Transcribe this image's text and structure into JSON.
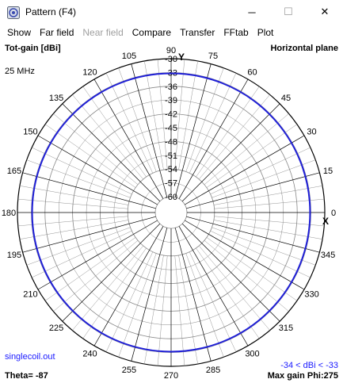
{
  "window": {
    "title": "Pattern   (F4)",
    "minimize_glyph": "─",
    "maximize_glyph": "☐",
    "close_glyph": "✕"
  },
  "menu": [
    {
      "label": "Show",
      "enabled": true
    },
    {
      "label": "Far field",
      "enabled": true
    },
    {
      "label": "Near field",
      "enabled": false
    },
    {
      "label": "Compare",
      "enabled": true
    },
    {
      "label": "Transfer",
      "enabled": true
    },
    {
      "label": "FFtab",
      "enabled": true
    },
    {
      "label": "Plot",
      "enabled": true
    }
  ],
  "plot": {
    "gain_label": "Tot-gain [dBi]",
    "plane_label": "Horizontal plane",
    "frequency": "25 MHz",
    "y_axis_label": "Y",
    "x_axis_label": "X",
    "file_name": "singlecoil.out",
    "theta": "Theta= -87",
    "range": "-34 < dBi < -33",
    "max_gain": "Max gain Phi:275"
  },
  "chart_data": {
    "type": "polar",
    "radial_ticks": [
      -30,
      -33,
      -36,
      -39,
      -42,
      -45,
      -48,
      -51,
      -54,
      -57,
      -60
    ],
    "r_range": [
      -60,
      -30
    ],
    "angle_ticks": [
      0,
      15,
      30,
      45,
      60,
      75,
      90,
      105,
      120,
      135,
      150,
      165,
      180,
      195,
      210,
      225,
      240,
      255,
      270,
      285,
      300,
      315,
      330,
      345
    ],
    "grid": true,
    "series": [
      {
        "color": "#1f1fd6",
        "angles_deg": [
          0,
          45,
          90,
          135,
          180,
          225,
          270,
          315
        ],
        "gain_dbi": [
          -33.2,
          -33.2,
          -33.2,
          -33.2,
          -33.2,
          -33.2,
          -33.2,
          -33.2
        ]
      }
    ]
  },
  "colors": {
    "trace": "#1f1fd6",
    "grid_major": "#000000",
    "grid_minor": "#888888",
    "annotation": "#1a1aff"
  }
}
